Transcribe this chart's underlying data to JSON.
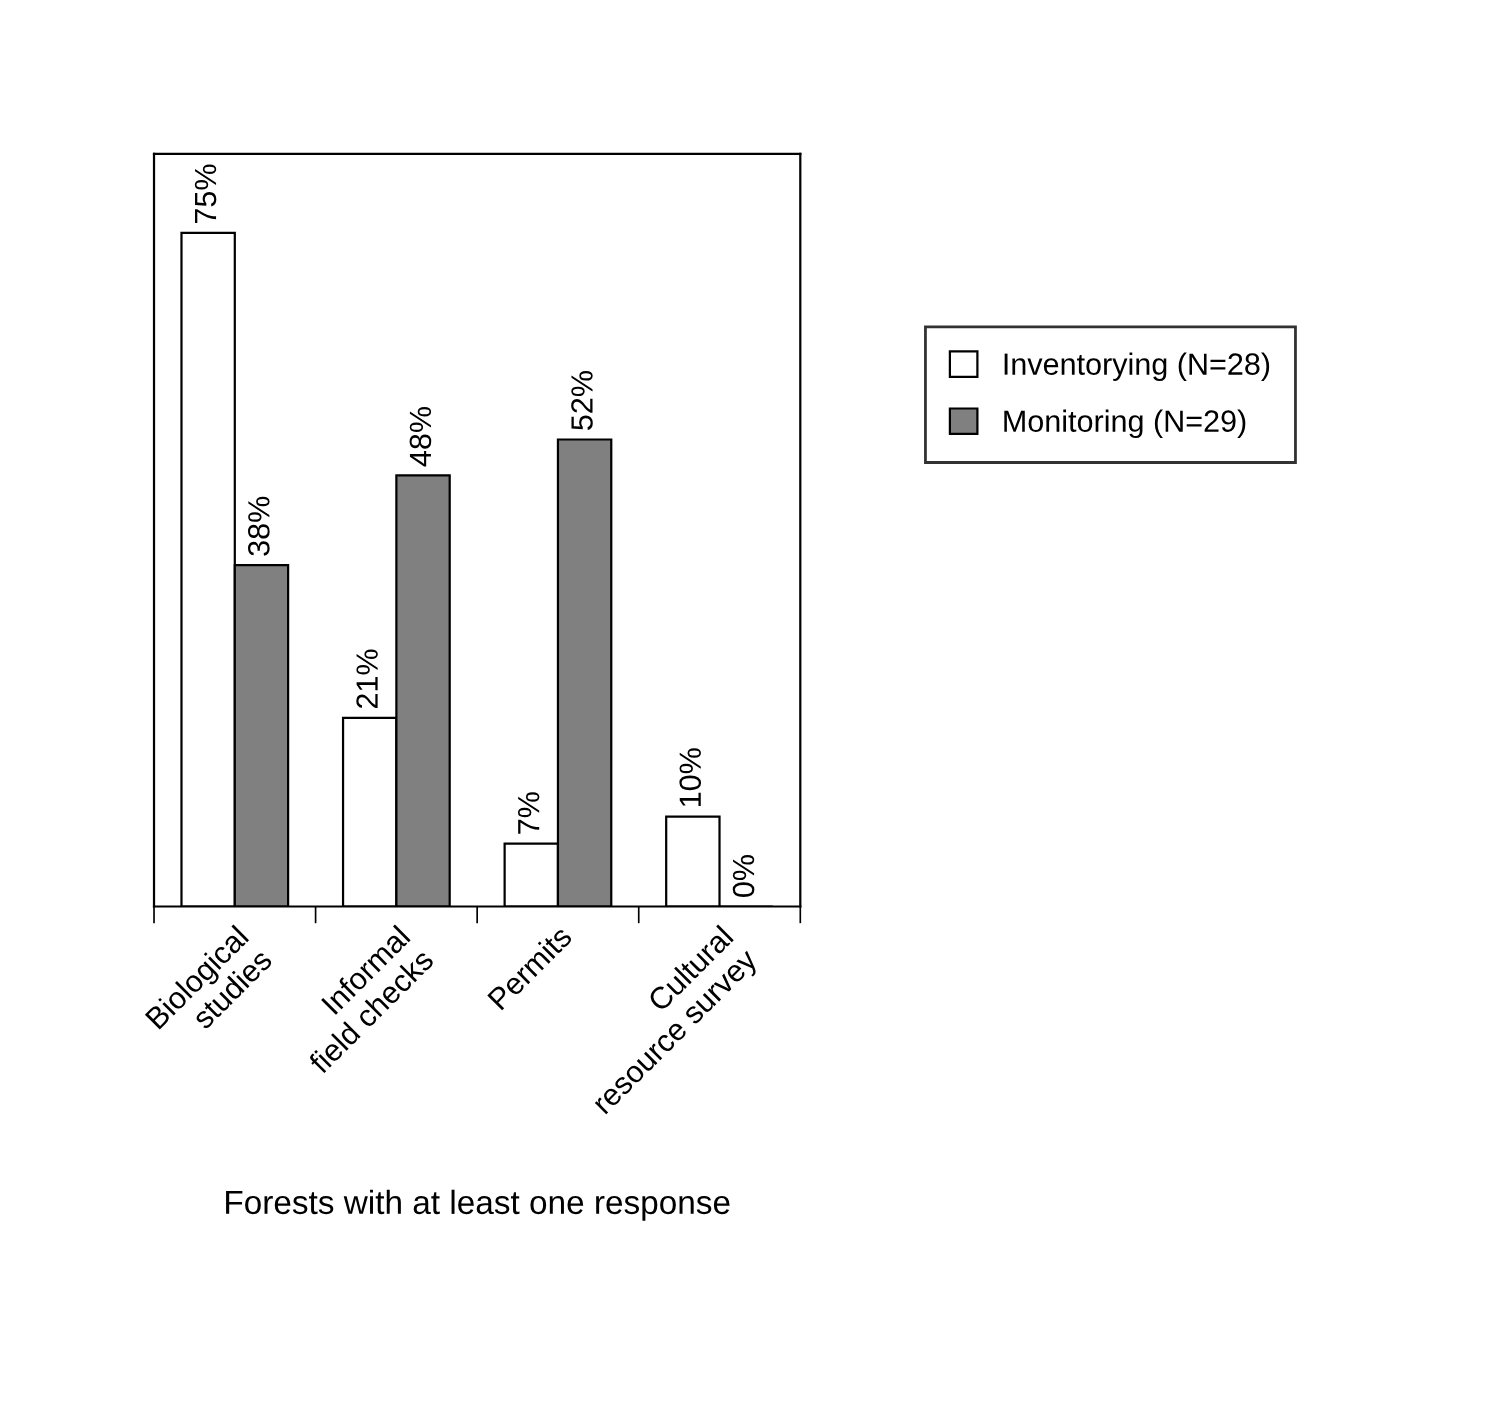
{
  "chart_data": {
    "type": "bar",
    "xlabel": "Forests with at least one response",
    "categories": [
      "Biological\nstudies",
      "Informal\nfield checks",
      "Permits",
      "Cultural\nresource survey"
    ],
    "series": [
      {
        "name": "Inventorying (N=28)",
        "color": "#ffffff",
        "values": [
          75,
          21,
          7,
          10
        ],
        "value_labels": [
          "75%",
          "21%",
          "7%",
          "10%"
        ]
      },
      {
        "name": "Monitoring (N=29)",
        "color": "#808080",
        "values": [
          38,
          48,
          52,
          0
        ],
        "value_labels": [
          "38%",
          "48%",
          "52%",
          "0%"
        ]
      }
    ],
    "legend": "right",
    "grid": false,
    "tick_labels": "x"
  }
}
